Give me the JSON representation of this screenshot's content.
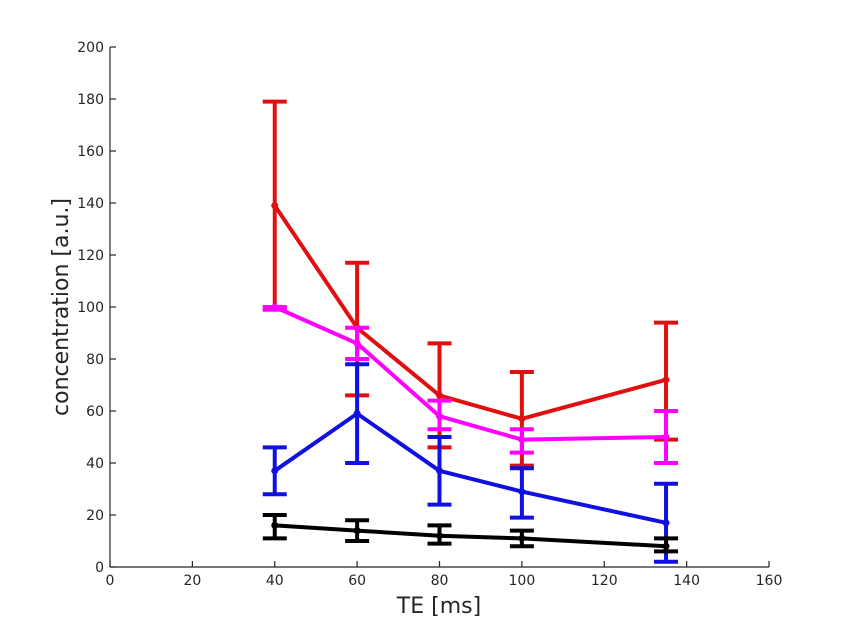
{
  "chart_data": {
    "type": "line",
    "xlabel": "TE [ms]",
    "ylabel": "concentration [a.u.]",
    "xlim": [
      0,
      160
    ],
    "ylim": [
      0,
      200
    ],
    "xticks": [
      0,
      20,
      40,
      60,
      80,
      100,
      120,
      140,
      160
    ],
    "yticks": [
      0,
      20,
      40,
      60,
      80,
      100,
      120,
      140,
      160,
      180,
      200
    ],
    "grid": false,
    "legend": "none",
    "series": [
      {
        "color": "#e01010",
        "x": [
          40,
          60,
          80,
          100,
          135
        ],
        "y": [
          139,
          92,
          66,
          57,
          72
        ],
        "err_low": [
          99,
          66,
          46,
          39,
          49
        ],
        "err_high": [
          179,
          117,
          86,
          75,
          94
        ]
      },
      {
        "color": "#ff00ff",
        "x": [
          40,
          60,
          80,
          100,
          135
        ],
        "y": [
          100,
          86,
          58,
          49,
          50
        ],
        "err_low": [
          99,
          80,
          53,
          44,
          40
        ],
        "err_high": [
          100,
          92,
          64,
          53,
          60
        ]
      },
      {
        "color": "#1010e0",
        "x": [
          40,
          60,
          80,
          100,
          135
        ],
        "y": [
          37,
          59,
          37,
          29,
          17
        ],
        "err_low": [
          28,
          40,
          24,
          19,
          2
        ],
        "err_high": [
          46,
          78,
          50,
          38,
          32
        ]
      },
      {
        "color": "#000000",
        "x": [
          40,
          60,
          80,
          100,
          135
        ],
        "y": [
          16,
          14,
          12,
          11,
          8
        ],
        "err_low": [
          11,
          10,
          9,
          8,
          6
        ],
        "err_high": [
          20,
          18,
          16,
          14,
          11
        ]
      }
    ]
  }
}
